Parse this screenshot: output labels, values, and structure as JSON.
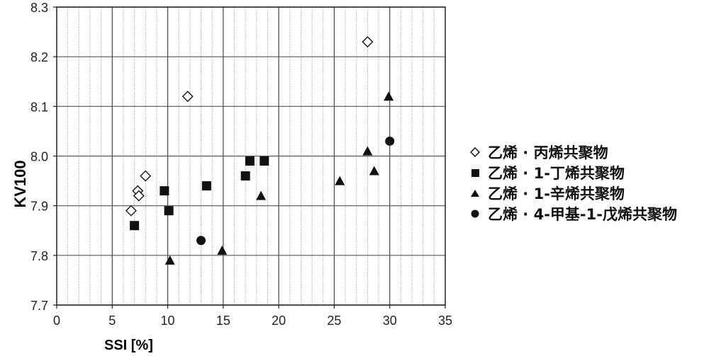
{
  "chart_data": {
    "type": "scatter",
    "title": "",
    "xlabel": "SSI [%]",
    "ylabel": "KV100",
    "xlim": [
      0,
      35
    ],
    "ylim": [
      7.7,
      8.3
    ],
    "x_ticks": [
      "0",
      "5",
      "10",
      "15",
      "20",
      "25",
      "30",
      "35"
    ],
    "y_ticks": [
      "7.7",
      "7.8",
      "7.9",
      "8.0",
      "8.1",
      "8.2",
      "8.3"
    ],
    "grid": {
      "major_x": true,
      "minor_x": true,
      "major_y": true
    },
    "legend_position": "right",
    "series": [
      {
        "name": "乙烯 · 丙烯共聚物",
        "marker": "diamond-open",
        "points": [
          [
            6.7,
            7.89
          ],
          [
            7.3,
            7.93
          ],
          [
            7.4,
            7.92
          ],
          [
            8.0,
            7.96
          ],
          [
            11.8,
            8.12
          ],
          [
            28.0,
            8.23
          ]
        ]
      },
      {
        "name": "乙烯 · 1-丁烯共聚物",
        "marker": "square-filled",
        "points": [
          [
            7.0,
            7.86
          ],
          [
            9.7,
            7.93
          ],
          [
            10.1,
            7.89
          ],
          [
            13.5,
            7.94
          ],
          [
            17.0,
            7.96
          ],
          [
            17.4,
            7.99
          ],
          [
            18.7,
            7.99
          ]
        ]
      },
      {
        "name": "乙烯 · 1-辛烯共聚物",
        "marker": "triangle-filled",
        "points": [
          [
            10.2,
            7.79
          ],
          [
            14.9,
            7.81
          ],
          [
            18.4,
            7.92
          ],
          [
            25.5,
            7.95
          ],
          [
            28.0,
            8.01
          ],
          [
            28.6,
            7.97
          ],
          [
            29.9,
            8.12
          ]
        ]
      },
      {
        "name": "乙烯 · 4-甲基-1-戊烯共聚物",
        "marker": "circle-filled",
        "points": [
          [
            13.0,
            7.83
          ],
          [
            30.0,
            8.03
          ]
        ]
      }
    ]
  },
  "legend": {
    "items": [
      {
        "label": "乙烯 · 丙烯共聚物",
        "icon": "diamond-open"
      },
      {
        "label": "乙烯 · 1-丁烯共聚物",
        "icon": "square-filled"
      },
      {
        "label": "乙烯 · 1-辛烯共聚物",
        "icon": "triangle-filled"
      },
      {
        "label": "乙烯 · 4-甲基-1-戊烯共聚物",
        "icon": "circle-filled"
      }
    ]
  }
}
